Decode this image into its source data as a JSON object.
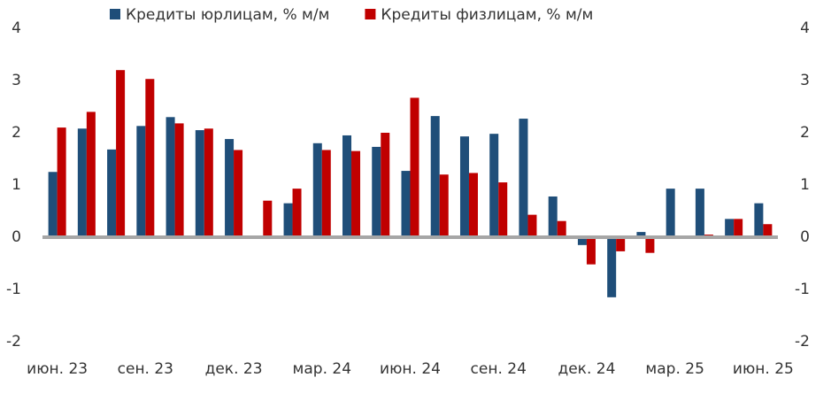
{
  "chart_data": {
    "type": "bar",
    "categories": [
      "июн. 23",
      null,
      null,
      "сен. 23",
      null,
      null,
      "дек. 23",
      null,
      null,
      "мар. 24",
      null,
      null,
      "июн. 24",
      null,
      null,
      "сен. 24",
      null,
      null,
      "дек. 24",
      null,
      null,
      "мар. 25",
      null,
      null,
      "июн. 25"
    ],
    "series": [
      {
        "name": "Кредиты юрлицам, % м/м",
        "color": "#1f4e79",
        "values": [
          1.25,
          2.08,
          1.68,
          2.13,
          2.3,
          2.05,
          1.88,
          null,
          0.65,
          1.8,
          1.95,
          1.73,
          1.27,
          2.32,
          1.93,
          1.98,
          2.27,
          0.78,
          -0.15,
          -1.15,
          0.1,
          0.93,
          0.93,
          0.35,
          0.65
        ]
      },
      {
        "name": "Кредиты физлицам, % м/м",
        "color": "#c00000",
        "values": [
          2.1,
          2.4,
          3.2,
          3.03,
          2.18,
          2.08,
          1.67,
          0.7,
          0.93,
          1.67,
          1.65,
          2.0,
          2.67,
          1.2,
          1.23,
          1.05,
          0.43,
          0.31,
          -0.52,
          -0.27,
          -0.3,
          null,
          0.05,
          0.35,
          0.25
        ]
      }
    ],
    "ylim": [
      -2,
      4
    ],
    "yticks": [
      -2,
      -1,
      0,
      1,
      2,
      3,
      4
    ],
    "y2lim": [
      -2,
      4
    ],
    "y2ticks": [
      -2,
      -1,
      0,
      1,
      2,
      3,
      4
    ],
    "legend": "top"
  }
}
